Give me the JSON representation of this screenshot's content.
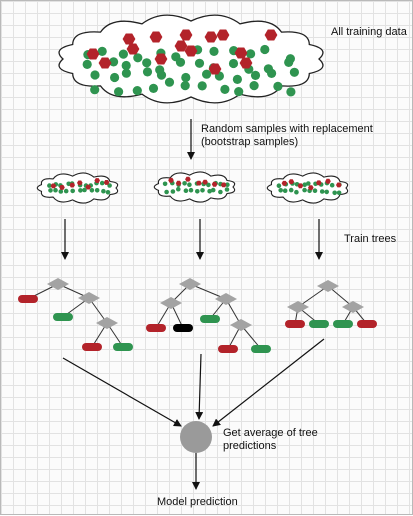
{
  "labels": {
    "all_training_data": "All training data",
    "random_samples": "Random samples with replacement (bootstrap samples)",
    "train_trees": "Train trees",
    "get_average": "Get average of tree predictions",
    "model_prediction": "Model prediction"
  },
  "colors": {
    "red_sample": "#b3232a",
    "green_sample": "#2f9450",
    "decision_node": "#a3a3a3",
    "aggregator": "#9a9a9a"
  }
}
